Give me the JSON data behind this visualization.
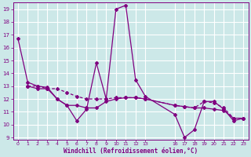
{
  "xlabel": "Windchill (Refroidissement éolien,°C)",
  "bg_color": "#cce8e8",
  "grid_color": "#ffffff",
  "line_color": "#800080",
  "xlim": [
    -0.5,
    23.5
  ],
  "ylim": [
    8.8,
    19.5
  ],
  "yticks": [
    9,
    10,
    11,
    12,
    13,
    14,
    15,
    16,
    17,
    18,
    19
  ],
  "xtick_positions": [
    0,
    1,
    2,
    3,
    4,
    5,
    6,
    7,
    8,
    9,
    10,
    11,
    12,
    13,
    16,
    17,
    18,
    19,
    20,
    21,
    22,
    23
  ],
  "xtick_labels": [
    "0",
    "1",
    "2",
    "3",
    "4",
    "5",
    "6",
    "7",
    "8",
    "9",
    "10",
    "11",
    "12",
    "13",
    "16",
    "17",
    "18",
    "19",
    "20",
    "21",
    "22",
    "23"
  ],
  "line1_x": [
    0,
    1,
    2,
    3,
    4,
    5,
    6,
    7,
    8,
    9,
    10,
    11,
    12,
    13,
    16,
    17,
    18,
    19,
    20,
    21,
    22,
    23
  ],
  "line1_y": [
    16.7,
    13.3,
    13.0,
    12.9,
    12.0,
    11.5,
    10.3,
    11.2,
    14.8,
    12.0,
    19.0,
    19.3,
    13.5,
    12.2,
    10.8,
    9.0,
    9.6,
    11.8,
    11.8,
    11.2,
    10.3,
    10.5
  ],
  "line2_x": [
    1,
    2,
    3,
    4,
    5,
    6,
    7,
    8,
    9,
    10,
    11,
    12,
    13,
    16,
    17,
    18,
    19,
    20,
    21,
    22,
    23
  ],
  "line2_y": [
    13.0,
    13.0,
    12.8,
    12.8,
    12.5,
    12.2,
    12.0,
    12.0,
    12.0,
    12.1,
    12.1,
    12.1,
    12.0,
    11.5,
    11.4,
    11.3,
    11.8,
    11.7,
    11.3,
    10.5,
    10.5
  ],
  "line3_x": [
    1,
    2,
    3,
    4,
    5,
    6,
    7,
    8,
    9,
    10,
    11,
    12,
    13,
    16,
    17,
    18,
    19,
    20,
    21,
    22,
    23
  ],
  "line3_y": [
    13.0,
    12.8,
    12.8,
    12.0,
    11.5,
    11.5,
    11.3,
    11.3,
    11.8,
    12.0,
    12.1,
    12.1,
    12.0,
    11.5,
    11.4,
    11.3,
    11.3,
    11.2,
    11.1,
    10.5,
    10.5
  ]
}
